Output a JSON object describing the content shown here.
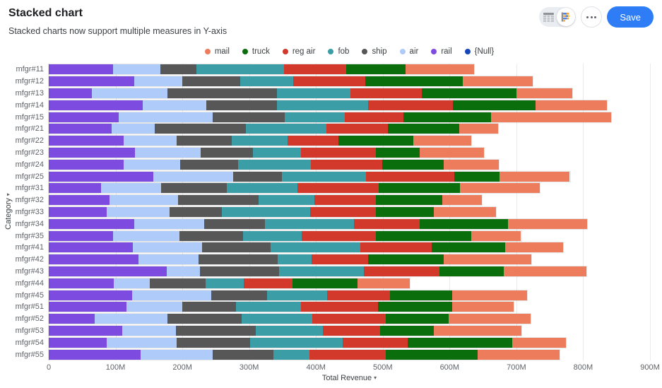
{
  "icons": {
    "caret_down": "▾"
  },
  "header": {
    "title": "Stacked chart",
    "subtitle": "Stacked charts now support multiple measures in Y-axis",
    "save_label": "Save"
  },
  "chart_data": {
    "type": "bar",
    "orientation": "horizontal",
    "stacked": true,
    "xlabel": "Total Revenue",
    "ylabel": "Category",
    "value_unit": "M",
    "xlim": [
      0,
      900
    ],
    "grid": "vertical",
    "legend_position": "top-center",
    "x_ticks": [
      {
        "value": 0,
        "label": "0"
      },
      {
        "value": 100,
        "label": "100M"
      },
      {
        "value": 200,
        "label": "200M"
      },
      {
        "value": 300,
        "label": "300M"
      },
      {
        "value": 400,
        "label": "400M"
      },
      {
        "value": 500,
        "label": "500M"
      },
      {
        "value": 600,
        "label": "600M"
      },
      {
        "value": 700,
        "label": "700M"
      },
      {
        "value": 800,
        "label": "800M"
      },
      {
        "value": 900,
        "label": "900M"
      }
    ],
    "legend": [
      {
        "label": "mail",
        "color": "#ec7c5b"
      },
      {
        "label": "truck",
        "color": "#0a6e0c"
      },
      {
        "label": "reg air",
        "color": "#d2392b"
      },
      {
        "label": "fob",
        "color": "#3b9da5"
      },
      {
        "label": "ship",
        "color": "#575757"
      },
      {
        "label": "air",
        "color": "#aecbfa"
      },
      {
        "label": "rail",
        "color": "#7d4be0"
      },
      {
        "label": "{Null}",
        "color": "#1547b8"
      }
    ],
    "categories": [
      "mfgr#11",
      "mfgr#12",
      "mfgr#13",
      "mfgr#14",
      "mfgr#15",
      "mfgr#21",
      "mfgr#22",
      "mfgr#23",
      "mfgr#24",
      "mfgr#25",
      "mfgr#31",
      "mfgr#32",
      "mfgr#33",
      "mfgr#34",
      "mfgr#35",
      "mfgr#41",
      "mfgr#42",
      "mfgr#43",
      "mfgr#44",
      "mfgr#45",
      "mfgr#51",
      "mfgr#52",
      "mfgr#53",
      "mfgr#54",
      "mfgr#55"
    ],
    "series": [
      {
        "name": "rail",
        "color": "#7d4be0",
        "values": [
          96,
          128,
          64,
          141,
          105,
          94,
          112,
          129,
          112,
          156,
          78,
          91,
          87,
          128,
          96,
          126,
          134,
          177,
          97,
          125,
          116,
          69,
          110,
          87,
          138
        ]
      },
      {
        "name": "air",
        "color": "#aecbfa",
        "values": [
          71,
          72,
          114,
          95,
          140,
          65,
          79,
          98,
          85,
          120,
          90,
          103,
          94,
          105,
          100,
          103,
          90,
          49,
          54,
          118,
          84,
          109,
          80,
          104,
          107
        ]
      },
      {
        "name": "ship",
        "color": "#575757",
        "values": [
          54,
          87,
          164,
          106,
          108,
          136,
          83,
          79,
          86,
          73,
          99,
          120,
          78,
          91,
          95,
          103,
          119,
          119,
          84,
          84,
          80,
          111,
          120,
          110,
          91
        ]
      },
      {
        "name": "fob",
        "color": "#3b9da5",
        "values": [
          131,
          79,
          110,
          136,
          90,
          121,
          83,
          72,
          109,
          126,
          105,
          84,
          132,
          133,
          88,
          134,
          50,
          127,
          57,
          90,
          98,
          106,
          100,
          139,
          54
        ]
      },
      {
        "name": "reg air",
        "color": "#d2392b",
        "values": [
          93,
          108,
          106,
          127,
          88,
          92,
          77,
          112,
          107,
          132,
          122,
          92,
          99,
          98,
          111,
          107,
          85,
          113,
          73,
          94,
          115,
          109,
          86,
          97,
          115
        ]
      },
      {
        "name": "truck",
        "color": "#0a6e0c",
        "values": [
          89,
          146,
          142,
          124,
          131,
          106,
          112,
          65,
          92,
          68,
          122,
          99,
          86,
          133,
          142,
          110,
          113,
          96,
          97,
          93,
          111,
          95,
          80,
          157,
          137
        ]
      },
      {
        "name": "mail",
        "color": "#ec7c5b",
        "values": [
          103,
          104,
          84,
          107,
          180,
          59,
          86,
          96,
          83,
          105,
          119,
          59,
          93,
          118,
          75,
          87,
          131,
          124,
          78,
          112,
          92,
          122,
          132,
          80,
          123
        ]
      },
      {
        "name": "{Null}",
        "color": "#1547b8",
        "values": [
          0,
          0,
          0,
          0,
          0,
          0,
          0,
          0,
          0,
          0,
          0,
          0,
          0,
          0,
          0,
          0,
          0,
          0,
          0,
          0,
          0,
          0,
          0,
          0,
          0
        ]
      }
    ]
  }
}
